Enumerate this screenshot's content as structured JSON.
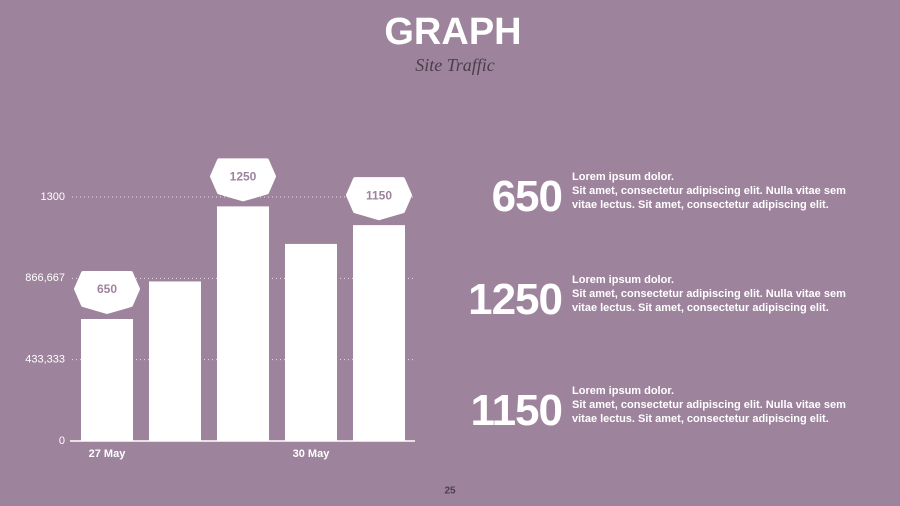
{
  "chart_data": {
    "type": "bar",
    "title": "GRAPH",
    "subtitle": "Site Traffic",
    "categories": [
      "27 May",
      null,
      null,
      "30 May",
      null
    ],
    "values": [
      650,
      850,
      1250,
      1050,
      1150
    ],
    "value_labels": [
      "650",
      null,
      "1250",
      null,
      "1150"
    ],
    "color": "#ffffff",
    "ylim": [
      0,
      1300
    ],
    "yticks": [
      0,
      {
        "value": 433.333,
        "label": "433,333"
      },
      {
        "value": 866.667,
        "label": "866,667"
      },
      1300
    ],
    "grid": true
  },
  "stats": [
    {
      "value": "650",
      "heading": "Lorem ipsum dolor.",
      "body": "Sit amet, consectetur adipiscing elit. Nulla vitae sem vitae lectus. Sit amet, consectetur adipiscing elit."
    },
    {
      "value": "1250",
      "heading": "Lorem ipsum dolor.",
      "body": "Sit amet, consectetur adipiscing elit. Nulla vitae sem vitae lectus. Sit amet, consectetur adipiscing elit."
    },
    {
      "value": "1150",
      "heading": "Lorem ipsum dolor.",
      "body": "Sit amet, consectetur adipiscing elit. Nulla vitae sem vitae lectus. Sit amet, consectetur adipiscing elit."
    }
  ],
  "page_number": "25"
}
